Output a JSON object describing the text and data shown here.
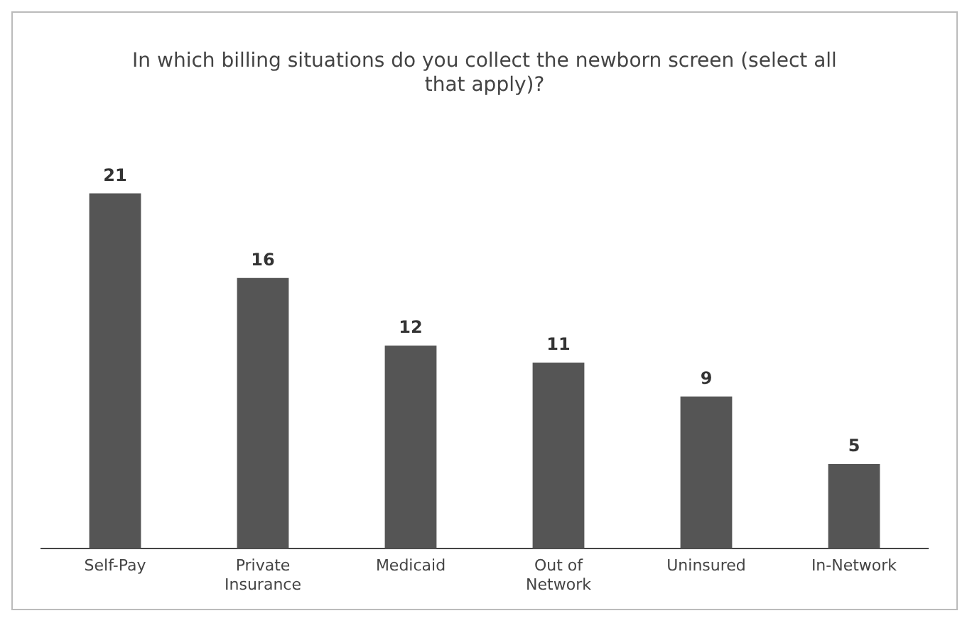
{
  "chart_data": {
    "type": "bar",
    "title": "In which billing situations do you collect the newborn screen (select all that apply)?",
    "categories": [
      "Self-Pay",
      "Private Insurance",
      "Medicaid",
      "Out of Network",
      "Uninsured",
      "In-Network"
    ],
    "values": [
      21,
      16,
      12,
      11,
      9,
      5
    ],
    "color": "#555555",
    "data_labels": true,
    "grid": false,
    "legend": false
  }
}
